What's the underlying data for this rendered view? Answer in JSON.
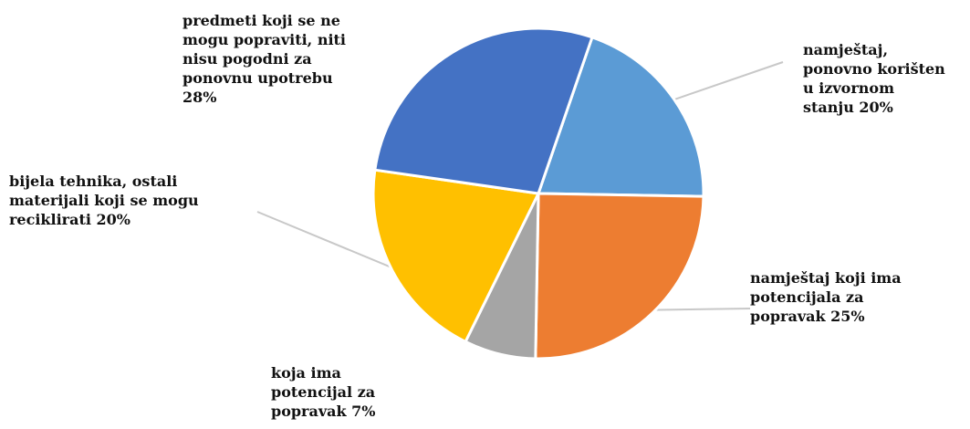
{
  "chart_data": {
    "type": "pie",
    "title": "",
    "legend": "none",
    "slices": [
      {
        "label": "namještaj,\nponovno korišten\nu izvornom\nstanju 20%",
        "value": 20,
        "color": "#5B9BD5"
      },
      {
        "label": "namještaj koji ima\npotencijala za\npopravak 25%",
        "value": 25,
        "color": "#ED7D31"
      },
      {
        "label": "koja ima\npotencijal za\npopravak 7%",
        "value": 7,
        "color": "#A5A5A5"
      },
      {
        "label": "bijela tehnika, ostali\nmaterijali koji se mogu\nreciklirati 20%",
        "value": 20,
        "color": "#FFC000"
      },
      {
        "label": "predmeti koji se ne\nmogu popraviti, niti\nnisu pogodni za\nponovnu upotrebu\n28%",
        "value": 28,
        "color": "#4472C4"
      }
    ]
  }
}
